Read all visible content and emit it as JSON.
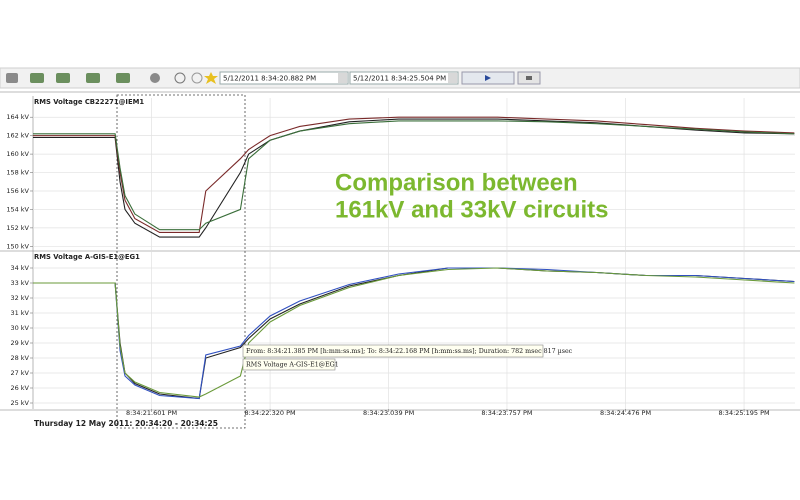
{
  "toolbar": {
    "start": "5/12/2011 8:34:20.882 PM",
    "end": "5/12/2011 8:34:25.504 PM"
  },
  "chart_data": [
    {
      "type": "line",
      "title": "RMS Voltage CB22271@IEM1",
      "x": [
        20.882,
        21.38,
        21.41,
        21.44,
        21.5,
        21.65,
        21.89,
        21.93,
        22.14,
        22.19,
        22.32,
        22.5,
        22.8,
        23.1,
        23.4,
        23.7,
        24.0,
        24.3,
        24.6,
        24.9,
        25.2,
        25.5
      ],
      "xlim": [
        20.882,
        25.504
      ],
      "ylim": [
        149.6,
        165
      ],
      "yticks": [
        {
          "value": 150,
          "label": "150 kV"
        },
        {
          "value": 152,
          "label": "152 kV"
        },
        {
          "value": 154,
          "label": "154 kV"
        },
        {
          "value": 156,
          "label": "156 kV"
        },
        {
          "value": 158,
          "label": "158 kV"
        },
        {
          "value": 160,
          "label": "160 kV"
        },
        {
          "value": 162,
          "label": "162 kV"
        },
        {
          "value": 164,
          "label": "164 kV"
        }
      ],
      "grid": true,
      "series": [
        {
          "color": "#222222",
          "values": [
            161.8,
            161.8,
            157,
            154,
            152.5,
            151,
            151,
            152,
            158,
            160,
            161.5,
            162.5,
            163.5,
            163.8,
            163.8,
            163.8,
            163.6,
            163.4,
            163,
            162.6,
            162.3,
            162.2
          ]
        },
        {
          "color": "#7a2a2a",
          "values": [
            162,
            162,
            158,
            155,
            153,
            151.5,
            151.5,
            156,
            159.5,
            160.5,
            162,
            163,
            163.8,
            164,
            164,
            164,
            163.8,
            163.6,
            163.2,
            162.8,
            162.5,
            162.3
          ]
        },
        {
          "color": "#3a6e3a",
          "values": [
            162.2,
            162.2,
            158.5,
            155.5,
            153.5,
            151.8,
            151.8,
            152.5,
            154,
            159.5,
            161.5,
            162.5,
            163.3,
            163.6,
            163.6,
            163.6,
            163.5,
            163.3,
            163,
            162.7,
            162.4,
            162.2
          ]
        }
      ]
    },
    {
      "type": "line",
      "title": "RMS Voltage A-GIS-E1@EG1",
      "x": [
        20.882,
        21.38,
        21.41,
        21.44,
        21.5,
        21.65,
        21.89,
        21.93,
        22.14,
        22.19,
        22.32,
        22.5,
        22.8,
        23.1,
        23.4,
        23.7,
        24.0,
        24.3,
        24.6,
        24.9,
        25.2,
        25.5
      ],
      "xlim": [
        20.882,
        25.504
      ],
      "xticks": [
        {
          "value": 21.601,
          "label": "8:34:21.601 PM"
        },
        {
          "value": 22.32,
          "label": "8:34:22.320 PM"
        },
        {
          "value": 23.039,
          "label": "8:34:23.039 PM"
        },
        {
          "value": 23.757,
          "label": "8:34:23.757 PM"
        },
        {
          "value": 24.476,
          "label": "8:34:24.476 PM"
        },
        {
          "value": 25.195,
          "label": "8:34:25.195 PM"
        }
      ],
      "ylim": [
        24.6,
        34.4
      ],
      "yticks": [
        {
          "value": 25,
          "label": "25 kV"
        },
        {
          "value": 26,
          "label": "26 kV"
        },
        {
          "value": 27,
          "label": "27 kV"
        },
        {
          "value": 28,
          "label": "28 kV"
        },
        {
          "value": 29,
          "label": "29 kV"
        },
        {
          "value": 30,
          "label": "30 kV"
        },
        {
          "value": 31,
          "label": "31 kV"
        },
        {
          "value": 32,
          "label": "32 kV"
        },
        {
          "value": 33,
          "label": "33 kV"
        },
        {
          "value": 34,
          "label": "34 kV"
        }
      ],
      "grid": true,
      "series": [
        {
          "color": "#222222",
          "values": [
            33,
            33,
            29,
            27,
            26.3,
            25.6,
            25.3,
            28,
            28.7,
            29.3,
            30.6,
            31.6,
            32.8,
            33.5,
            34,
            34,
            33.8,
            33.7,
            33.5,
            33.5,
            33.3,
            33.1
          ]
        },
        {
          "color": "#3050c0",
          "values": [
            33,
            33,
            28.5,
            26.8,
            26.2,
            25.5,
            25.3,
            28.2,
            28.8,
            29.5,
            30.8,
            31.8,
            32.9,
            33.6,
            34,
            34,
            33.9,
            33.7,
            33.5,
            33.5,
            33.3,
            33.1
          ]
        },
        {
          "color": "#6a9a3a",
          "values": [
            33,
            33,
            28.8,
            27,
            26.4,
            25.7,
            25.4,
            25.6,
            26.8,
            29,
            30.4,
            31.5,
            32.7,
            33.5,
            33.9,
            34,
            33.8,
            33.7,
            33.5,
            33.4,
            33.2,
            33
          ]
        }
      ]
    }
  ],
  "overlay_text": [
    "Comparison between",
    "161kV and 33kV circuits"
  ],
  "tooltip": {
    "range": "From: 8:34:21.385 PM [h:mm:ss.ms]; To: 8:34:22.168 PM [h:mm:ss.ms]; Duration: 782 msec 817 µsec",
    "channel": "RMS Voltage A-GIS-E1@EG1"
  },
  "footer": "Thursday 12 May 2011: 20:34:20 - 20:34:25"
}
